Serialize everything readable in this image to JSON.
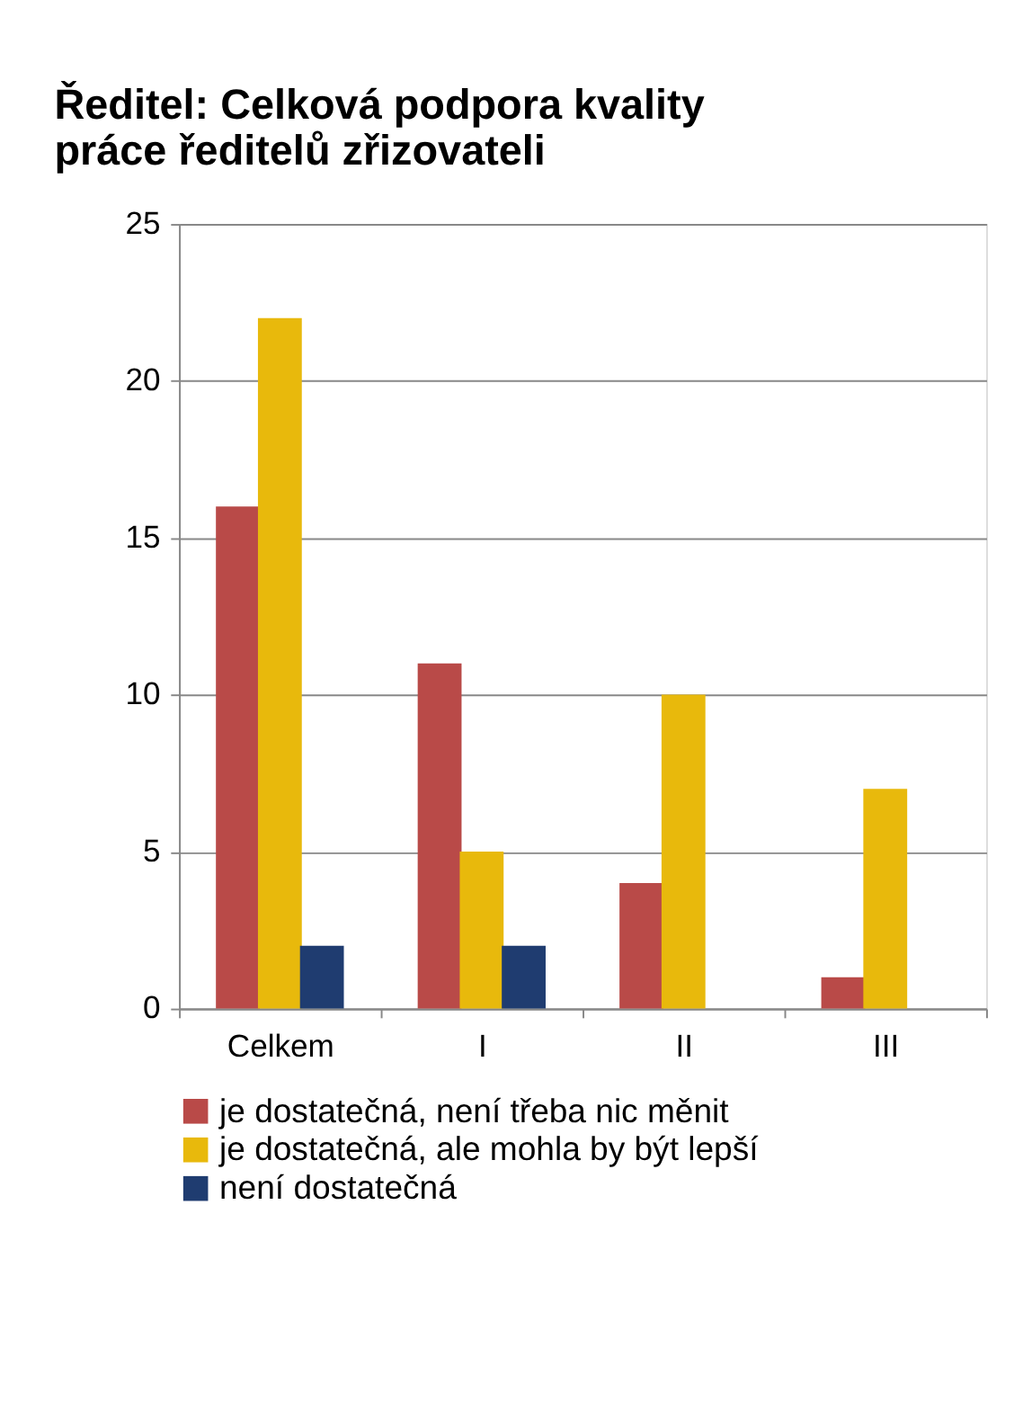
{
  "chart_data": {
    "type": "bar",
    "title": "Ředitel: Celková podpora kvality práce ředitelů zřizovateli",
    "categories": [
      "Celkem",
      "I",
      "II",
      "III"
    ],
    "series": [
      {
        "name": "je dostatečná, není třeba nic měnit",
        "color": "#b94a48",
        "values": [
          16,
          11,
          4,
          1
        ]
      },
      {
        "name": "je dostatečná, ale mohla by být lepší",
        "color": "#e8b90c",
        "values": [
          22,
          5,
          10,
          7
        ]
      },
      {
        "name": "není dostatečná",
        "color": "#1f3c70",
        "values": [
          2,
          2,
          0,
          0
        ]
      }
    ],
    "ylim": [
      0,
      25
    ],
    "yticks": [
      0,
      5,
      10,
      15,
      20,
      25
    ],
    "grid": "y",
    "legend": "bottom"
  }
}
